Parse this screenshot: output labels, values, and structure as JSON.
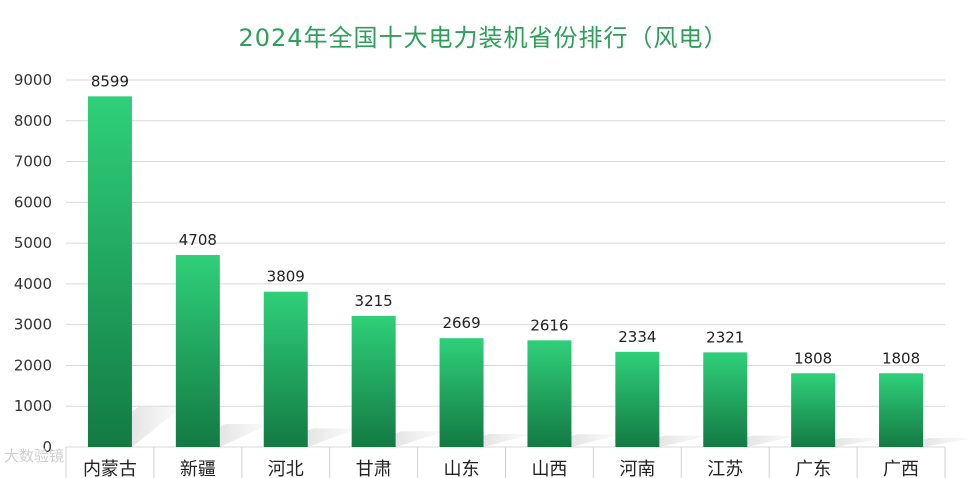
{
  "chart_data": {
    "type": "bar",
    "title": "2024年全国十大电力装机省份排行（风电）",
    "categories": [
      "内蒙古",
      "新疆",
      "河北",
      "甘肃",
      "山东",
      "山西",
      "河南",
      "江苏",
      "广东",
      "广西"
    ],
    "values": [
      8599,
      4708,
      3809,
      3215,
      2669,
      2616,
      2334,
      2321,
      1808,
      1808
    ],
    "ylim": [
      0,
      9000
    ],
    "yticks": [
      0,
      1000,
      2000,
      3000,
      4000,
      5000,
      6000,
      7000,
      8000,
      9000
    ],
    "grid": true,
    "colors": {
      "bar_top": "#2fd07a",
      "bar_bottom": "#137a43",
      "title": "#2e9e5b"
    }
  },
  "watermark": "大数验镜"
}
